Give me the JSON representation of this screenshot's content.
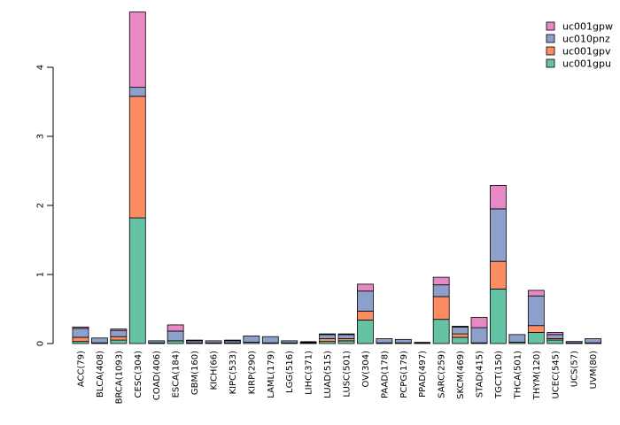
{
  "chart_data": {
    "type": "bar",
    "stacked": true,
    "categories": [
      "ACC(79)",
      "BLCA(408)",
      "BRCA(1093)",
      "CESC(304)",
      "COAD(406)",
      "ESCA(184)",
      "GBM(160)",
      "KICH(66)",
      "KIPC(533)",
      "KIRP(290)",
      "LAML(179)",
      "LGG(516)",
      "LIHC(371)",
      "LUAD(515)",
      "LUSC(501)",
      "OV(304)",
      "PAAD(178)",
      "PCPG(179)",
      "PPAD(497)",
      "SARC(259)",
      "SKCM(469)",
      "STAD(415)",
      "TGCT(150)",
      "THCA(501)",
      "THYM(120)",
      "UCEC(545)",
      "UCS(57)",
      "UVM(80)"
    ],
    "series": [
      {
        "name": "uc001gpu",
        "color": "#66C2A5",
        "values": [
          0.03,
          0.01,
          0.05,
          1.82,
          0.01,
          0.04,
          0.01,
          0.01,
          0.01,
          0.02,
          0.01,
          0.01,
          0.01,
          0.03,
          0.04,
          0.34,
          0.01,
          0.01,
          0.0,
          0.35,
          0.09,
          0.01,
          0.79,
          0.02,
          0.16,
          0.05,
          0.01,
          0.01
        ]
      },
      {
        "name": "uc001gpv",
        "color": "#FC8D62",
        "values": [
          0.06,
          0.0,
          0.05,
          1.76,
          0.0,
          0.0,
          0.0,
          0.0,
          0.0,
          0.0,
          0.0,
          0.0,
          0.0,
          0.04,
          0.03,
          0.13,
          0.0,
          0.0,
          0.0,
          0.33,
          0.05,
          0.0,
          0.4,
          0.0,
          0.1,
          0.02,
          0.0,
          0.0
        ]
      },
      {
        "name": "uc010pnz",
        "color": "#8DA0CB",
        "values": [
          0.13,
          0.07,
          0.09,
          0.13,
          0.03,
          0.14,
          0.03,
          0.03,
          0.03,
          0.09,
          0.09,
          0.03,
          0.01,
          0.06,
          0.06,
          0.29,
          0.06,
          0.05,
          0.01,
          0.17,
          0.1,
          0.22,
          0.76,
          0.11,
          0.43,
          0.06,
          0.02,
          0.06
        ]
      },
      {
        "name": "uc001gpw",
        "color": "#E78AC3",
        "values": [
          0.02,
          0.0,
          0.02,
          1.09,
          0.0,
          0.09,
          0.01,
          0.0,
          0.01,
          0.0,
          0.0,
          0.0,
          0.0,
          0.01,
          0.01,
          0.1,
          0.0,
          0.0,
          0.0,
          0.11,
          0.01,
          0.15,
          0.34,
          0.0,
          0.08,
          0.03,
          0.0,
          0.0
        ]
      }
    ],
    "ylim": [
      0,
      4.8
    ],
    "yticks": [
      "0",
      "1",
      "2",
      "3",
      "4"
    ],
    "legend_position": "top-right",
    "title": "",
    "xlabel": "",
    "ylabel": ""
  }
}
